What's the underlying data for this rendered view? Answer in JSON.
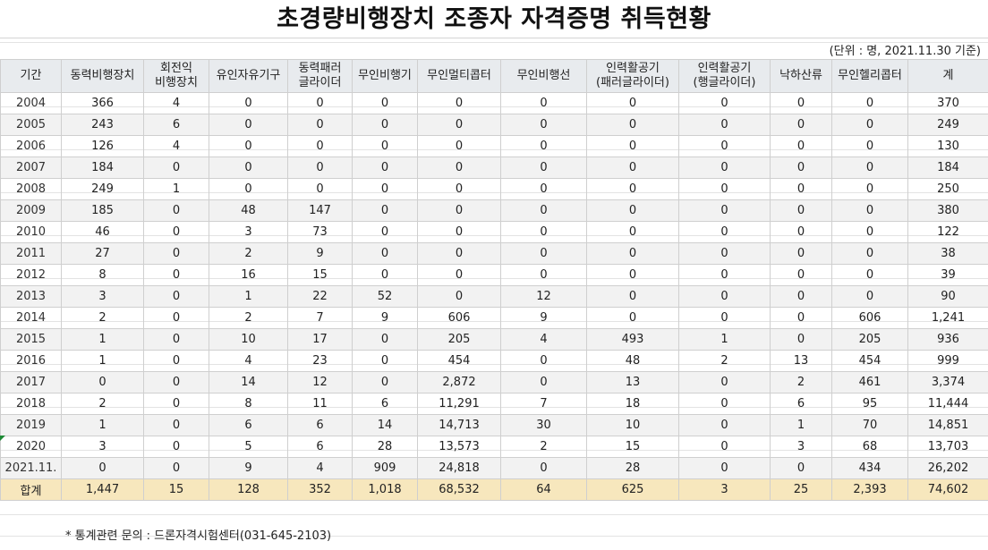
{
  "title": "초경량비행장치 조종자 자격증명 취득현황",
  "unit_note": "(단위 : 명, 2021.11.30 기준)",
  "columns": [
    {
      "line1": "기간",
      "line2": ""
    },
    {
      "line1": "동력비행장치",
      "line2": ""
    },
    {
      "line1": "회전익",
      "line2": "비행장치"
    },
    {
      "line1": "유인자유기구",
      "line2": ""
    },
    {
      "line1": "동력패러",
      "line2": "글라이더"
    },
    {
      "line1": "무인비행기",
      "line2": ""
    },
    {
      "line1": "무인멀티콥터",
      "line2": ""
    },
    {
      "line1": "무인비행선",
      "line2": ""
    },
    {
      "line1": "인력활공기",
      "line2": "(패러글라이더)"
    },
    {
      "line1": "인력활공기",
      "line2": "(행글라이더)"
    },
    {
      "line1": "낙하산류",
      "line2": ""
    },
    {
      "line1": "무인헬리콥터",
      "line2": ""
    },
    {
      "line1": "계",
      "line2": ""
    }
  ],
  "rows": [
    [
      "2004",
      "366",
      "4",
      "0",
      "0",
      "0",
      "0",
      "0",
      "0",
      "0",
      "0",
      "0",
      "370"
    ],
    [
      "2005",
      "243",
      "6",
      "0",
      "0",
      "0",
      "0",
      "0",
      "0",
      "0",
      "0",
      "0",
      "249"
    ],
    [
      "2006",
      "126",
      "4",
      "0",
      "0",
      "0",
      "0",
      "0",
      "0",
      "0",
      "0",
      "0",
      "130"
    ],
    [
      "2007",
      "184",
      "0",
      "0",
      "0",
      "0",
      "0",
      "0",
      "0",
      "0",
      "0",
      "0",
      "184"
    ],
    [
      "2008",
      "249",
      "1",
      "0",
      "0",
      "0",
      "0",
      "0",
      "0",
      "0",
      "0",
      "0",
      "250"
    ],
    [
      "2009",
      "185",
      "0",
      "48",
      "147",
      "0",
      "0",
      "0",
      "0",
      "0",
      "0",
      "0",
      "380"
    ],
    [
      "2010",
      "46",
      "0",
      "3",
      "73",
      "0",
      "0",
      "0",
      "0",
      "0",
      "0",
      "0",
      "122"
    ],
    [
      "2011",
      "27",
      "0",
      "2",
      "9",
      "0",
      "0",
      "0",
      "0",
      "0",
      "0",
      "0",
      "38"
    ],
    [
      "2012",
      "8",
      "0",
      "16",
      "15",
      "0",
      "0",
      "0",
      "0",
      "0",
      "0",
      "0",
      "39"
    ],
    [
      "2013",
      "3",
      "0",
      "1",
      "22",
      "52",
      "0",
      "12",
      "0",
      "0",
      "0",
      "0",
      "90"
    ],
    [
      "2014",
      "2",
      "0",
      "2",
      "7",
      "9",
      "606",
      "9",
      "0",
      "0",
      "0",
      "606",
      "1,241"
    ],
    [
      "2015",
      "1",
      "0",
      "10",
      "17",
      "0",
      "205",
      "4",
      "493",
      "1",
      "0",
      "205",
      "936"
    ],
    [
      "2016",
      "1",
      "0",
      "4",
      "23",
      "0",
      "454",
      "0",
      "48",
      "2",
      "13",
      "454",
      "999"
    ],
    [
      "2017",
      "0",
      "0",
      "14",
      "12",
      "0",
      "2,872",
      "0",
      "13",
      "0",
      "2",
      "461",
      "3,374"
    ],
    [
      "2018",
      "2",
      "0",
      "8",
      "11",
      "6",
      "11,291",
      "7",
      "18",
      "0",
      "6",
      "95",
      "11,444"
    ],
    [
      "2019",
      "1",
      "0",
      "6",
      "6",
      "14",
      "14,713",
      "30",
      "10",
      "0",
      "1",
      "70",
      "14,851"
    ],
    [
      "2020",
      "3",
      "0",
      "5",
      "6",
      "28",
      "13,573",
      "2",
      "15",
      "0",
      "3",
      "68",
      "13,703"
    ],
    [
      "2021.11.",
      "0",
      "0",
      "9",
      "4",
      "909",
      "24,818",
      "0",
      "28",
      "0",
      "0",
      "434",
      "26,202"
    ]
  ],
  "total": [
    "합계",
    "1,447",
    "15",
    "128",
    "352",
    "1,018",
    "68,532",
    "64",
    "625",
    "3",
    "25",
    "2,393",
    "74,602"
  ],
  "footnote": "* 통계관련 문의 : 드론자격시험센터(031-645-2103)",
  "colors": {
    "header_bg": "#e8ebee",
    "alt_row_bg": "#f2f2f2",
    "total_bg": "#f7e7bd",
    "grid": "#cfcfcf"
  }
}
